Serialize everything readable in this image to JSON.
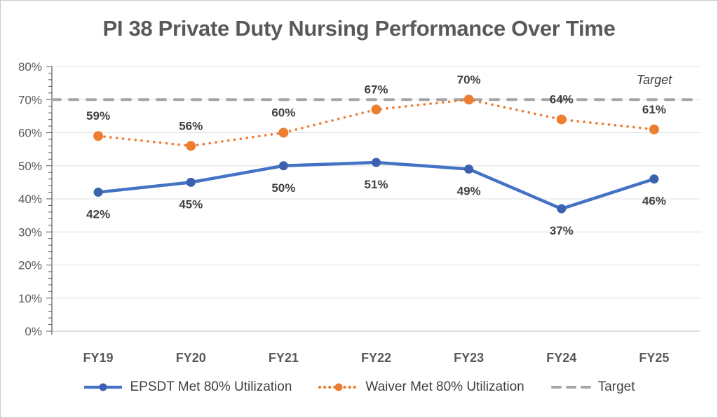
{
  "chart": {
    "title": "PI 38 Private Duty Nursing Performance Over Time",
    "target_annotation": "Target"
  },
  "chart_data": {
    "type": "line",
    "title": "PI 38 Private Duty Nursing Performance Over Time",
    "categories": [
      "FY19",
      "FY20",
      "FY21",
      "FY22",
      "FY23",
      "FY24",
      "FY25"
    ],
    "series": [
      {
        "name": "EPSDT Met 80% Utilization",
        "values": [
          42,
          45,
          50,
          51,
          49,
          37,
          46
        ],
        "labels": [
          "42%",
          "45%",
          "50%",
          "51%",
          "49%",
          "37%",
          "46%"
        ],
        "color": "#4472C4",
        "marker_color": "#3A62AE",
        "line_style": "solid",
        "marker": "circle",
        "label_position": "below"
      },
      {
        "name": "Waiver Met 80% Utilization",
        "values": [
          59,
          56,
          60,
          67,
          70,
          64,
          61
        ],
        "labels": [
          "59%",
          "56%",
          "60%",
          "67%",
          "70%",
          "64%",
          "61%"
        ],
        "color": "#ED7D31",
        "marker_color": "#ED7D31",
        "line_style": "dotted",
        "marker": "circle",
        "label_position": "above"
      },
      {
        "name": "Target",
        "values": [
          70,
          70,
          70,
          70,
          70,
          70,
          70
        ],
        "labels": [],
        "color": "#A6A6A6",
        "line_style": "dashed",
        "marker": "none",
        "annotation": "Target",
        "label_position": "none"
      }
    ],
    "xlabel": "",
    "ylabel": "",
    "ylim": [
      0,
      80
    ],
    "y_ticks": [
      "0%",
      "10%",
      "20%",
      "30%",
      "40%",
      "50%",
      "60%",
      "70%",
      "80%"
    ],
    "y_tick_step": 10,
    "y_minor_tick_step": 2,
    "grid": "horizontal",
    "legend_position": "bottom",
    "data_label_color": "#404040",
    "axis_text_color": "#595959",
    "gridline_color": "#E0E0E0"
  }
}
